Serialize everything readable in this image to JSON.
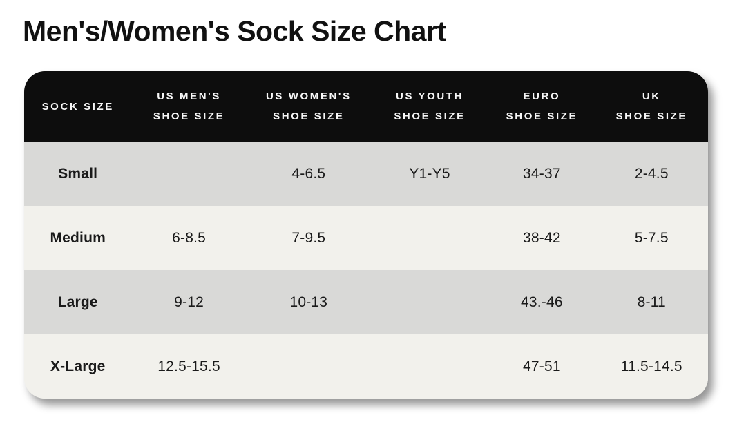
{
  "page_title": "Men's/Women's Sock Size Chart",
  "colors": {
    "header_bg": "#0d0d0d",
    "header_text": "#f7f7f7",
    "row_gray": "#d9d9d7",
    "row_cream": "#f2f1ec",
    "title_text": "#111111",
    "body_text": "#1a1a1a",
    "page_bg": "#ffffff"
  },
  "header": {
    "cells": [
      {
        "line1": "SOCK SIZE",
        "line2": ""
      },
      {
        "line1": "US MEN'S",
        "line2": "SHOE SIZE"
      },
      {
        "line1": "US WOMEN'S",
        "line2": "SHOE SIZE"
      },
      {
        "line1": "US YOUTH",
        "line2": "SHOE SIZE"
      },
      {
        "line1": "EURO",
        "line2": "SHOE SIZE"
      },
      {
        "line1": "UK",
        "line2": "SHOE SIZE"
      }
    ]
  },
  "chart_data": {
    "type": "table",
    "title": "Men's/Women's Sock Size Chart",
    "columns": [
      "SOCK SIZE",
      "US MEN'S SHOE SIZE",
      "US WOMEN'S SHOE SIZE",
      "US YOUTH SHOE SIZE",
      "EURO SHOE SIZE",
      "UK SHOE SIZE"
    ],
    "rows": [
      [
        "Small",
        "",
        "4-6.5",
        "Y1-Y5",
        "34-37",
        "2-4.5"
      ],
      [
        "Medium",
        "6-8.5",
        "7-9.5",
        "",
        "38-42",
        "5-7.5"
      ],
      [
        "Large",
        "9-12",
        "10-13",
        "",
        "43.-46",
        "8-11"
      ],
      [
        "X-Large",
        "12.5-15.5",
        "",
        "",
        "47-51",
        "11.5-14.5"
      ]
    ]
  }
}
